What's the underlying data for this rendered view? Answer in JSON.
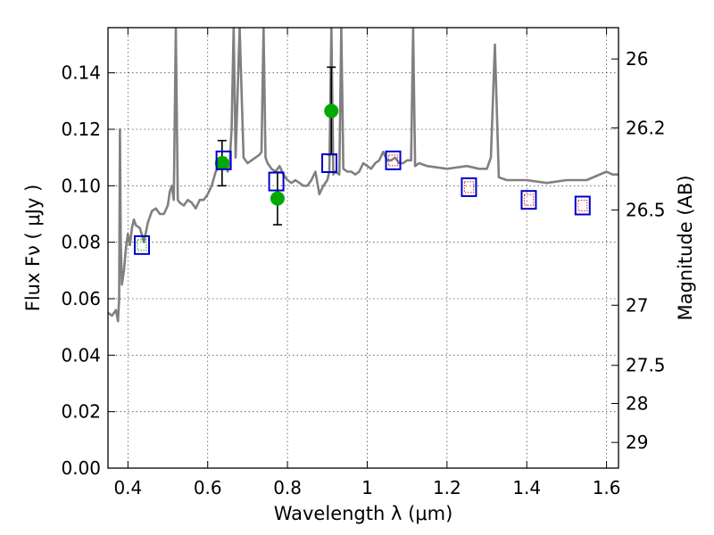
{
  "chart_data": {
    "type": "scatter",
    "xlabel": "Wavelength  λ (μm)",
    "ylabel": "Flux  Fν  ( μJy )",
    "y2label": "Magnitude (AB)",
    "xlim": [
      0.35,
      1.63
    ],
    "ylim": [
      0.0,
      0.156
    ],
    "x_ticks": [
      0.4,
      0.6,
      0.8,
      1.0,
      1.2,
      1.4,
      1.6
    ],
    "x_tick_labels": [
      "0.4",
      "0.6",
      "0.8",
      "1",
      "1.2",
      "1.4",
      "1.6"
    ],
    "y_ticks": [
      0.0,
      0.02,
      0.04,
      0.06,
      0.08,
      0.1,
      0.12,
      0.14
    ],
    "y_tick_labels": [
      "0.00",
      "0.02",
      "0.04",
      "0.06",
      "0.08",
      "0.10",
      "0.12",
      "0.14"
    ],
    "y2_ticks": [
      {
        "label": "26",
        "flux": 0.1449
      },
      {
        "label": "26.2",
        "flux": 0.1205
      },
      {
        "label": "26.5",
        "flux": 0.0914
      },
      {
        "label": "27",
        "flux": 0.0577
      },
      {
        "label": "27.5",
        "flux": 0.0364
      },
      {
        "label": "28",
        "flux": 0.0229
      },
      {
        "label": "29",
        "flux": 0.0091
      }
    ],
    "grid": true,
    "colors": {
      "spectrum": "#808080",
      "observed": "#00aa00",
      "model_box": "#0000cc",
      "model_inner": "#dd2222",
      "error_bar": "#000000"
    },
    "series": [
      {
        "kind": "line",
        "x": [
          0.35,
          0.36,
          0.37,
          0.375,
          0.378,
          0.38,
          0.382,
          0.385,
          0.39,
          0.395,
          0.4,
          0.405,
          0.41,
          0.415,
          0.42,
          0.43,
          0.44,
          0.45,
          0.46,
          0.47,
          0.48,
          0.49,
          0.5,
          0.505,
          0.51,
          0.515,
          0.52,
          0.525,
          0.53,
          0.54,
          0.55,
          0.56,
          0.57,
          0.58,
          0.59,
          0.6,
          0.61,
          0.62,
          0.63,
          0.64,
          0.645,
          0.65,
          0.655,
          0.66,
          0.665,
          0.67,
          0.68,
          0.69,
          0.7,
          0.71,
          0.72,
          0.73,
          0.735,
          0.74,
          0.745,
          0.75,
          0.76,
          0.77,
          0.78,
          0.79,
          0.8,
          0.81,
          0.82,
          0.83,
          0.84,
          0.85,
          0.86,
          0.87,
          0.88,
          0.89,
          0.9,
          0.905,
          0.91,
          0.915,
          0.92,
          0.93,
          0.935,
          0.94,
          0.95,
          0.96,
          0.97,
          0.98,
          0.99,
          1.0,
          1.01,
          1.02,
          1.03,
          1.04,
          1.05,
          1.06,
          1.07,
          1.08,
          1.09,
          1.1,
          1.11,
          1.115,
          1.12,
          1.13,
          1.15,
          1.2,
          1.25,
          1.28,
          1.3,
          1.31,
          1.32,
          1.33,
          1.35,
          1.4,
          1.45,
          1.5,
          1.55,
          1.6,
          1.615,
          1.63
        ],
        "y": [
          0.055,
          0.054,
          0.056,
          0.052,
          0.06,
          0.12,
          0.08,
          0.065,
          0.07,
          0.078,
          0.083,
          0.079,
          0.085,
          0.088,
          0.086,
          0.085,
          0.08,
          0.087,
          0.091,
          0.092,
          0.09,
          0.09,
          0.093,
          0.098,
          0.1,
          0.095,
          0.156,
          0.095,
          0.094,
          0.093,
          0.095,
          0.094,
          0.092,
          0.095,
          0.095,
          0.097,
          0.1,
          0.105,
          0.107,
          0.109,
          0.11,
          0.105,
          0.108,
          0.12,
          0.156,
          0.11,
          0.156,
          0.11,
          0.108,
          0.109,
          0.11,
          0.111,
          0.112,
          0.156,
          0.11,
          0.108,
          0.106,
          0.105,
          0.107,
          0.104,
          0.102,
          0.101,
          0.102,
          0.101,
          0.1,
          0.1,
          0.102,
          0.105,
          0.097,
          0.1,
          0.102,
          0.105,
          0.156,
          0.104,
          0.105,
          0.104,
          0.156,
          0.106,
          0.105,
          0.105,
          0.104,
          0.105,
          0.108,
          0.107,
          0.106,
          0.108,
          0.109,
          0.112,
          0.109,
          0.109,
          0.11,
          0.108,
          0.108,
          0.109,
          0.109,
          0.156,
          0.107,
          0.108,
          0.107,
          0.106,
          0.107,
          0.106,
          0.106,
          0.11,
          0.15,
          0.103,
          0.102,
          0.102,
          0.101,
          0.102,
          0.102,
          0.105,
          0.104,
          0.104
        ]
      },
      {
        "kind": "points",
        "marker": "circle",
        "x": [
          0.636,
          0.775,
          0.91
        ],
        "y": [
          0.108,
          0.0955,
          0.1265
        ],
        "yerr": [
          0.008,
          0.0093,
          0.0155
        ]
      },
      {
        "kind": "points",
        "marker": "square",
        "x": [
          0.435,
          0.64,
          0.772,
          0.905,
          1.065,
          1.255,
          1.405,
          1.54
        ],
        "y": [
          0.079,
          0.109,
          0.1015,
          0.108,
          0.109,
          0.0995,
          0.095,
          0.093
        ]
      }
    ]
  }
}
